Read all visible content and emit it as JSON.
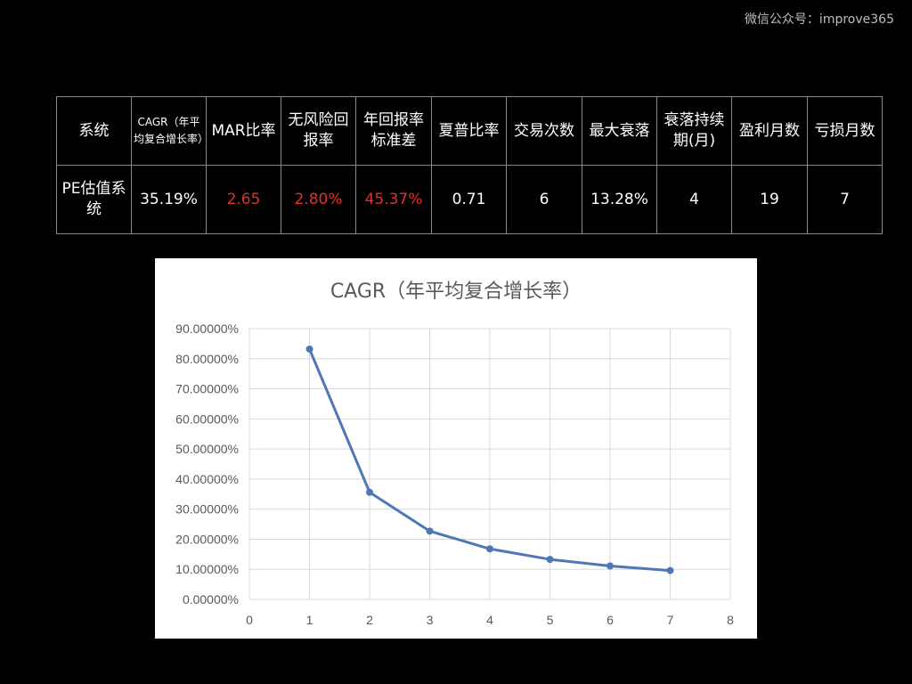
{
  "watermark": "微信公众号：improve365",
  "table": {
    "headers": [
      "系统",
      "CAGR（年平均复合增长率）",
      "MAR比率",
      "无风险回报率",
      "年回报率标准差",
      "夏普比率",
      "交易次数",
      "最大衰落",
      "衰落持续期(月)",
      "盈利月数",
      "亏损月数"
    ],
    "rows": [
      [
        "PE估值系统",
        "35.19%",
        "2.65",
        "2.80%",
        "45.37%",
        "0.71",
        "6",
        "13.28%",
        "4",
        "19",
        "7"
      ]
    ],
    "highlight_color": "#e0302a"
  },
  "chart_data": {
    "type": "line",
    "title": "CAGR（年平均复合增长率）",
    "xlabel": "",
    "ylabel": "",
    "x": [
      1,
      2,
      3,
      4,
      5,
      6,
      7
    ],
    "series": [
      {
        "values": [
          0.832,
          0.356,
          0.227,
          0.168,
          0.133,
          0.111,
          0.096
        ],
        "color": "#4f77b6"
      }
    ],
    "xlim": [
      0,
      8
    ],
    "ylim": [
      0,
      0.9
    ],
    "xticks": [
      "0",
      "1",
      "2",
      "3",
      "4",
      "5",
      "6",
      "7",
      "8"
    ],
    "yticks": [
      "0.00000%",
      "10.00000%",
      "20.00000%",
      "30.00000%",
      "40.00000%",
      "50.00000%",
      "60.00000%",
      "70.00000%",
      "80.00000%",
      "90.00000%"
    ],
    "grid": true,
    "legend": "none"
  }
}
